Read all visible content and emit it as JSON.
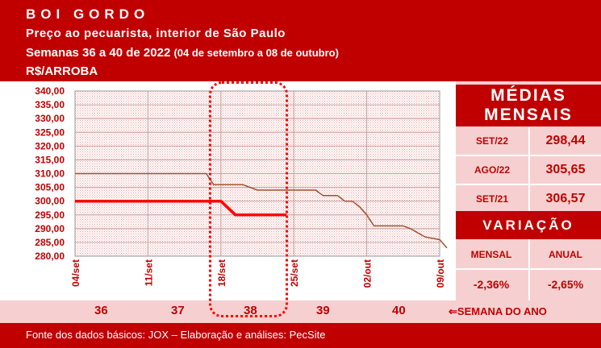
{
  "header": {
    "title": "BOI GORDO",
    "subtitle": "Preço ao pecuarista, interior de São Paulo",
    "weeks_prefix": "Semanas 36 a 40 de 2022",
    "weeks_range": "(04 de setembro a 08 de outubro)",
    "unit": "R$/ARROBA"
  },
  "chart_data": {
    "type": "line",
    "y_ticks": [
      "340,00",
      "335,00",
      "330,00",
      "325,00",
      "320,00",
      "315,00",
      "310,00",
      "305,00",
      "300,00",
      "295,00",
      "290,00",
      "285,00",
      "280,00"
    ],
    "ylim": [
      280,
      340
    ],
    "x_ticks": [
      "04/set",
      "11/set",
      "18/set",
      "25/set",
      "02/out",
      "09/out"
    ],
    "x_tick_pos": [
      0,
      7,
      14,
      21,
      28,
      35
    ],
    "grid": true,
    "series": [
      {
        "color": "#a0522d",
        "width": 1.5,
        "points": [
          [
            0,
            310
          ],
          [
            12.6,
            310
          ],
          [
            13.3,
            306
          ],
          [
            16.1,
            306
          ],
          [
            17.5,
            304
          ],
          [
            23.1,
            304
          ],
          [
            23.8,
            302
          ],
          [
            25.2,
            302
          ],
          [
            25.9,
            300
          ],
          [
            26.6,
            300
          ],
          [
            27.3,
            298
          ],
          [
            28,
            295
          ],
          [
            28.7,
            291
          ],
          [
            31.5,
            291
          ],
          [
            32.2,
            290
          ],
          [
            33.6,
            287
          ],
          [
            35,
            286
          ],
          [
            35.7,
            283
          ]
        ]
      },
      {
        "color": "#ff0000",
        "width": 3.5,
        "points": [
          [
            0,
            300
          ],
          [
            14,
            300
          ],
          [
            15.4,
            295
          ],
          [
            20.3,
            295
          ]
        ]
      }
    ]
  },
  "highlight_week": "38",
  "medias": {
    "title_line1": "MÉDIAS",
    "title_line2": "MENSAIS",
    "rows": [
      {
        "label": "SET/22",
        "value": "298,44"
      },
      {
        "label": "AGO/22",
        "value": "305,65"
      },
      {
        "label": "SET/21",
        "value": "306,57"
      }
    ]
  },
  "variacao": {
    "title": "VARIAÇÃO",
    "mensal_label": "MENSAL",
    "anual_label": "ANUAL",
    "mensal_value": "-2,36%",
    "anual_value": "-2,65%"
  },
  "weeks": {
    "numbers": [
      "36",
      "37",
      "38",
      "39",
      "40"
    ],
    "label": "SEMANA DO ANO",
    "arrow": "⇐"
  },
  "footer": {
    "text": "Fonte dos dados básicos: JOX – Elaboração e análises: PecSite"
  }
}
